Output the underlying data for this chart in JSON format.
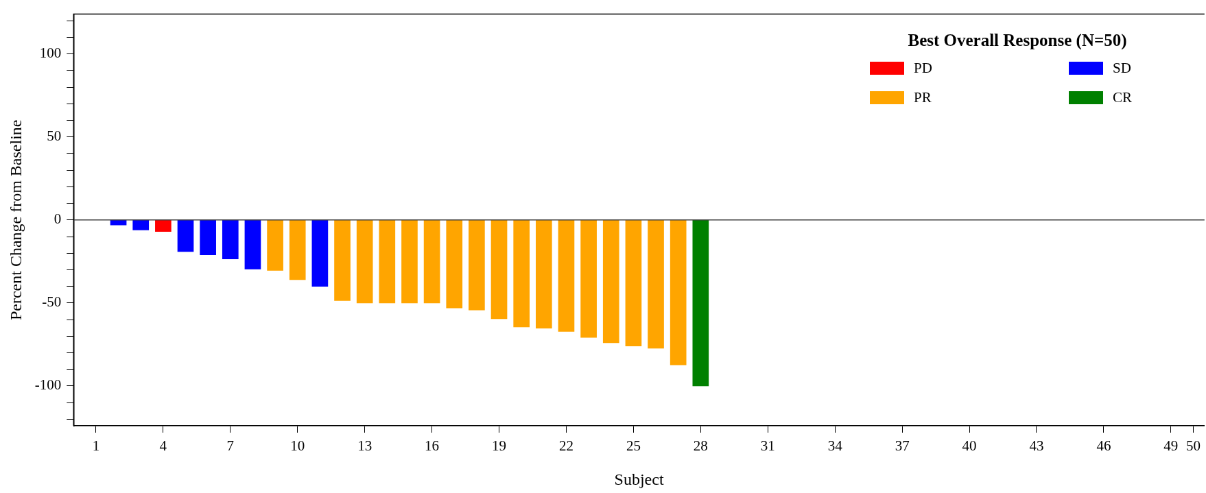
{
  "chart_data": {
    "type": "bar",
    "xlabel": "Subject",
    "ylabel": "Percent Change from Baseline",
    "legend_title": "Best Overall Response (N=50)",
    "legend": "top right",
    "xlim": [
      0,
      50.5
    ],
    "xticks": [
      1,
      4,
      7,
      10,
      13,
      16,
      19,
      22,
      25,
      28,
      31,
      34,
      37,
      40,
      43,
      46,
      49,
      50
    ],
    "ylim": [
      -124,
      124
    ],
    "yticks": [
      {
        "value": -120,
        "label": null
      },
      {
        "value": -110,
        "label": null
      },
      -100,
      {
        "value": -90,
        "label": null
      },
      {
        "value": -80,
        "label": null
      },
      {
        "value": -70,
        "label": null
      },
      {
        "value": -60,
        "label": null
      },
      -50,
      {
        "value": -40,
        "label": null
      },
      {
        "value": -30,
        "label": null
      },
      {
        "value": -20,
        "label": null
      },
      {
        "value": -10,
        "label": null
      },
      0,
      {
        "value": 10,
        "label": null
      },
      {
        "value": 20,
        "label": null
      },
      {
        "value": 30,
        "label": null
      },
      {
        "value": 40,
        "label": null
      },
      50,
      {
        "value": 60,
        "label": null
      },
      {
        "value": 70,
        "label": null
      },
      {
        "value": 80,
        "label": null
      },
      {
        "value": 90,
        "label": null
      },
      100,
      {
        "value": 110,
        "label": null
      },
      {
        "value": 120,
        "label": null
      }
    ],
    "ref_lines": [
      {
        "axis": "y",
        "value": 0,
        "color": "#404040"
      }
    ],
    "series": [
      {
        "name": "PD",
        "color": "#ff0000",
        "x": [
          4
        ],
        "values": [
          -7
        ]
      },
      {
        "name": "SD",
        "color": "#0000ff",
        "x": [
          2,
          3,
          5,
          6,
          7,
          8,
          11
        ],
        "values": [
          -3,
          -6,
          -19,
          -21,
          -23.5,
          -29.6,
          -40
        ]
      },
      {
        "name": "PR",
        "color": "#ffa500",
        "x": [
          9,
          10,
          12,
          13,
          14,
          15,
          16,
          17,
          18,
          19,
          20,
          21,
          22,
          23,
          24,
          25,
          26,
          27
        ],
        "values": [
          -30.4,
          -36,
          -48.6,
          -50,
          -50,
          -50,
          -50,
          -53,
          -54.3,
          -59.5,
          -64.5,
          -65.2,
          -67.2,
          -70.8,
          -74,
          -76,
          -77.3,
          -87.3
        ]
      },
      {
        "name": "CR",
        "color": "#008000",
        "x": [
          28
        ],
        "values": [
          -100
        ]
      }
    ]
  }
}
